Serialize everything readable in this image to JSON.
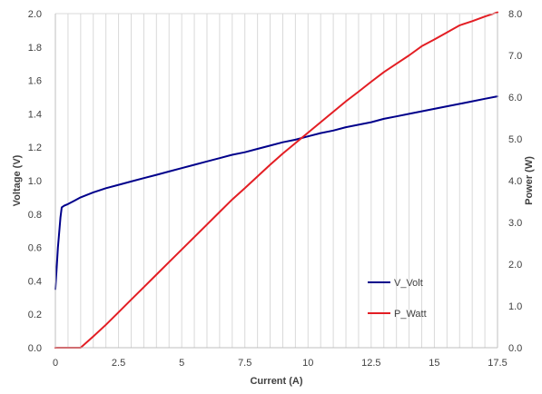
{
  "chart_data": {
    "type": "line",
    "xlabel": "Current (A)",
    "ylabel_left": "Voltage (V)",
    "ylabel_right": "Power (W)",
    "xlim": [
      0,
      17.5
    ],
    "ylim_left": [
      0,
      2.0
    ],
    "ylim_right": [
      0,
      8.0
    ],
    "x_ticks": [
      "0",
      "2.5",
      "5",
      "7.5",
      "10",
      "12.5",
      "15",
      "17.5"
    ],
    "x_tick_values": [
      0,
      2.5,
      5,
      7.5,
      10,
      12.5,
      15,
      17.5
    ],
    "y_left_ticks": [
      "0.0",
      "0.2",
      "0.4",
      "0.6",
      "0.8",
      "1.0",
      "1.2",
      "1.4",
      "1.6",
      "1.8",
      "2.0"
    ],
    "y_left_tick_values": [
      0,
      0.2,
      0.4,
      0.6,
      0.8,
      1.0,
      1.2,
      1.4,
      1.6,
      1.8,
      2.0
    ],
    "y_right_ticks": [
      "0.0",
      "1.0",
      "2.0",
      "3.0",
      "4.0",
      "5.0",
      "6.0",
      "7.0",
      "8.0"
    ],
    "y_right_tick_values": [
      0,
      1,
      2,
      3,
      4,
      5,
      6,
      7,
      8
    ],
    "grid": "vertical",
    "legend_position": "right-bottom",
    "series": [
      {
        "name": "V_Volt",
        "axis": "left",
        "color": "#00008b",
        "x": [
          0.0,
          0.1,
          0.2,
          0.25,
          0.35,
          0.5,
          0.75,
          1.0,
          1.5,
          2.0,
          2.5,
          3.0,
          3.5,
          4.0,
          4.5,
          5.0,
          5.5,
          6.0,
          6.5,
          7.0,
          7.5,
          8.0,
          8.5,
          9.0,
          9.5,
          10.0,
          10.5,
          11.0,
          11.5,
          12.0,
          12.5,
          13.0,
          13.5,
          14.0,
          14.5,
          15.0,
          15.5,
          16.0,
          16.5,
          17.0,
          17.5
        ],
        "values": [
          0.35,
          0.6,
          0.78,
          0.84,
          0.85,
          0.86,
          0.88,
          0.9,
          0.93,
          0.955,
          0.975,
          0.995,
          1.015,
          1.035,
          1.055,
          1.075,
          1.095,
          1.115,
          1.135,
          1.155,
          1.17,
          1.19,
          1.21,
          1.23,
          1.245,
          1.265,
          1.285,
          1.3,
          1.32,
          1.335,
          1.35,
          1.37,
          1.385,
          1.4,
          1.415,
          1.43,
          1.445,
          1.46,
          1.475,
          1.49,
          1.505
        ]
      },
      {
        "name": "P_Watt",
        "axis": "right",
        "color": "#e31e24",
        "x": [
          0.0,
          0.5,
          1.0,
          1.5,
          2.0,
          2.5,
          3.0,
          3.5,
          4.0,
          4.5,
          5.0,
          5.5,
          6.0,
          6.5,
          7.0,
          7.5,
          8.0,
          8.5,
          9.0,
          9.5,
          10.0,
          10.5,
          11.0,
          11.5,
          12.0,
          12.5,
          13.0,
          13.5,
          14.0,
          14.5,
          15.0,
          15.5,
          16.0,
          16.5,
          17.0,
          17.5
        ],
        "values": [
          0.0,
          0.0,
          0.0,
          0.27,
          0.55,
          0.85,
          1.15,
          1.45,
          1.75,
          2.05,
          2.35,
          2.65,
          2.95,
          3.25,
          3.55,
          3.82,
          4.1,
          4.38,
          4.65,
          4.9,
          5.15,
          5.4,
          5.65,
          5.9,
          6.13,
          6.37,
          6.6,
          6.8,
          7.0,
          7.22,
          7.38,
          7.55,
          7.72,
          7.82,
          7.93,
          8.03
        ]
      }
    ]
  }
}
